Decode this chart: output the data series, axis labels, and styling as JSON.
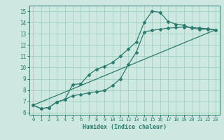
{
  "title": "",
  "xlabel": "Humidex (Indice chaleur)",
  "bg_color": "#cce8e0",
  "line_color": "#2d7a6e",
  "xlim": [
    -0.5,
    23.5
  ],
  "ylim": [
    5.8,
    15.5
  ],
  "xticks": [
    0,
    1,
    2,
    3,
    4,
    5,
    6,
    7,
    8,
    9,
    10,
    11,
    12,
    13,
    14,
    15,
    16,
    17,
    18,
    19,
    20,
    21,
    22,
    23
  ],
  "yticks": [
    6,
    7,
    8,
    9,
    10,
    11,
    12,
    13,
    14,
    15
  ],
  "line1_x": [
    0,
    1,
    2,
    3,
    4,
    5,
    6,
    7,
    8,
    9,
    10,
    11,
    12,
    13,
    14,
    15,
    16,
    17,
    18,
    19,
    20,
    21,
    22,
    23
  ],
  "line1_y": [
    6.65,
    6.35,
    6.45,
    6.95,
    7.15,
    8.5,
    8.55,
    9.35,
    9.85,
    10.1,
    10.45,
    11.0,
    11.65,
    12.25,
    14.0,
    15.0,
    14.9,
    14.1,
    13.85,
    13.75,
    13.5,
    13.4,
    13.4,
    13.35
  ],
  "line2_x": [
    0,
    1,
    2,
    3,
    4,
    5,
    6,
    7,
    8,
    9,
    10,
    11,
    12,
    13,
    14,
    15,
    16,
    17,
    18,
    19,
    20,
    21,
    22,
    23
  ],
  "line2_y": [
    6.65,
    6.35,
    6.45,
    6.95,
    7.15,
    7.5,
    7.6,
    7.75,
    7.85,
    7.95,
    8.4,
    9.0,
    10.25,
    11.35,
    13.15,
    13.3,
    13.4,
    13.5,
    13.55,
    13.6,
    13.55,
    13.5,
    13.45,
    13.35
  ],
  "line3_x": [
    0,
    23
  ],
  "line3_y": [
    6.65,
    13.35
  ],
  "grid_color": "#99ccbb",
  "marker": "D",
  "markersize": 2.0,
  "linewidth": 0.9
}
